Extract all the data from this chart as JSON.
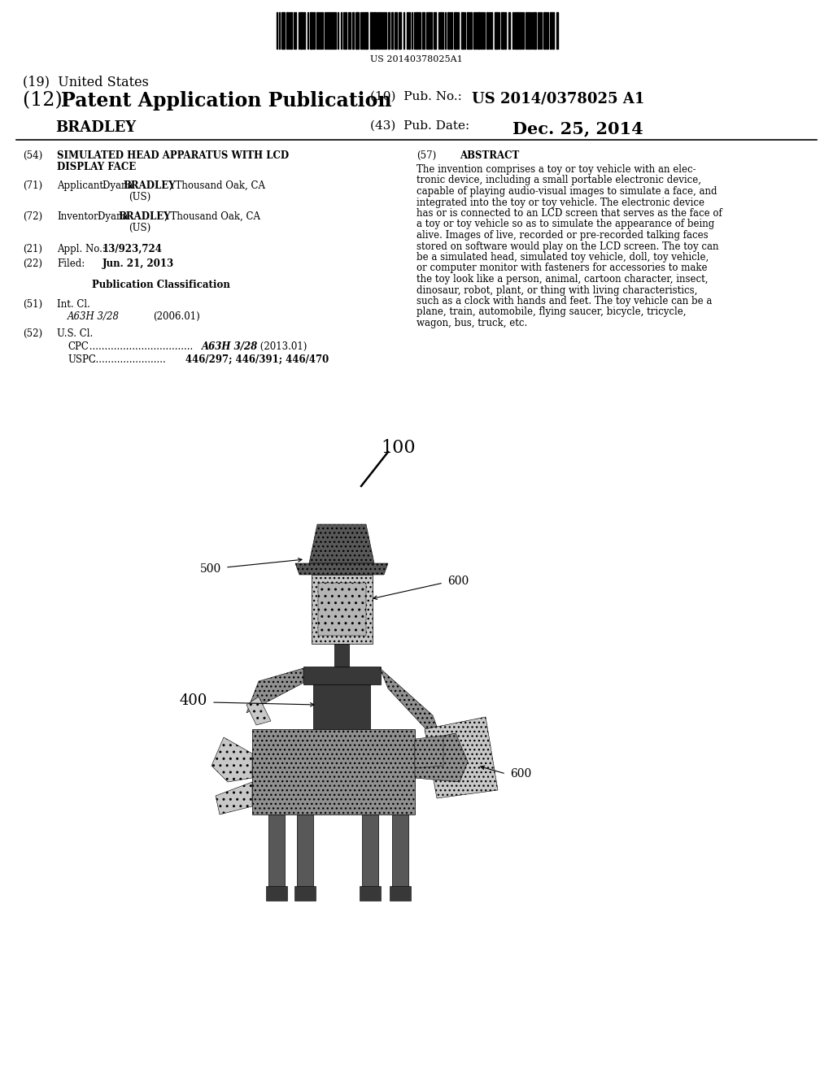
{
  "bg_color": "#ffffff",
  "barcode_text": "US 20140378025A1",
  "title_19": "(19)  United States",
  "title_12_bold": "Patent Application Publication",
  "title_12_prefix": "(12) ",
  "pub_no_label": "(10)  Pub. No.:",
  "pub_no_value": "US 2014/0378025 A1",
  "inventor_name": "BRADLEY",
  "pub_date_label": "(43)  Pub. Date:",
  "pub_date_value": "Dec. 25, 2014",
  "field_54_text_line1": "SIMULATED HEAD APPARATUS WITH LCD",
  "field_54_text_line2": "DISPLAY FACE",
  "field_57_text": "ABSTRACT",
  "abstract_text_lines": [
    "The invention comprises a toy or toy vehicle with an elec-",
    "tronic device, including a small portable electronic device,",
    "capable of playing audio-visual images to simulate a face, and",
    "integrated into the toy or toy vehicle. The electronic device",
    "has or is connected to an LCD screen that serves as the face of",
    "a toy or toy vehicle so as to simulate the appearance of being",
    "alive. Images of live, recorded or pre-recorded talking faces",
    "stored on software would play on the LCD screen. The toy can",
    "be a simulated head, simulated toy vehicle, doll, toy vehicle,",
    "or computer monitor with fasteners for accessories to make",
    "the toy look like a person, animal, cartoon character, insect,",
    "dinosaur, robot, plant, or thing with living characteristics,",
    "such as a clock with hands and feet. The toy vehicle can be a",
    "plane, train, automobile, flying saucer, bicycle, tricycle,",
    "wagon, bus, truck, etc."
  ],
  "label_100": "100",
  "label_500": "500",
  "label_600_top": "600",
  "label_400": "400",
  "label_600_mid": "600",
  "gray_light": "#c8c8c8",
  "gray_mid": "#909090",
  "gray_dark": "#585858",
  "gray_darker": "#383838",
  "gray_pattern": "#b0b0b0"
}
